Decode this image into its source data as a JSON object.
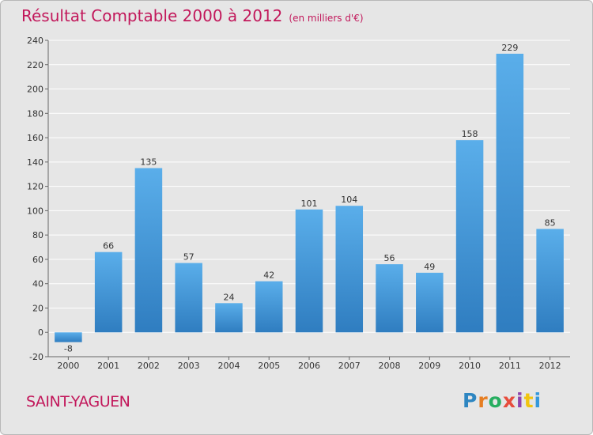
{
  "header": {
    "title": "Résultat Comptable 2000 à 2012",
    "unit": "(en milliers d'€)"
  },
  "footer": {
    "commune": "SAINT-YAGUEN",
    "logo": "Proxiti",
    "logo_colors": [
      "#2e86c1",
      "#e67e22",
      "#27ae60",
      "#e74c3c",
      "#8e44ad",
      "#f1c40f",
      "#3498db"
    ]
  },
  "chart_data": {
    "type": "bar",
    "categories": [
      "2000",
      "2001",
      "2002",
      "2003",
      "2004",
      "2005",
      "2006",
      "2007",
      "2008",
      "2009",
      "2010",
      "2011",
      "2012"
    ],
    "values": [
      -8,
      66,
      135,
      57,
      24,
      42,
      101,
      104,
      56,
      49,
      158,
      229,
      85
    ],
    "ylim": [
      -20,
      240
    ],
    "yticks": [
      -20,
      0,
      20,
      40,
      60,
      80,
      100,
      120,
      140,
      160,
      180,
      200,
      220,
      240
    ],
    "grid": true,
    "bar_color": "#4a9fe0",
    "bar_color_dark": "#2e7bbf"
  }
}
